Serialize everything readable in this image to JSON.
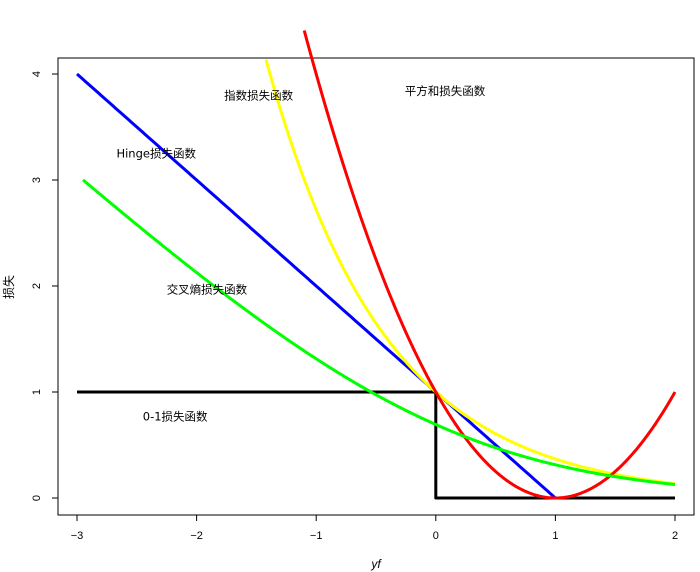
{
  "chart_data": {
    "type": "line",
    "xlabel": "yf",
    "ylabel": "损失",
    "xlim": [
      -3,
      2
    ],
    "ylim": [
      0,
      4
    ],
    "x_ticks": [
      -3,
      -2,
      -1,
      0,
      1,
      2
    ],
    "y_ticks": [
      0,
      1,
      2,
      3,
      4
    ],
    "grid": false,
    "series": [
      {
        "name": "0-1损失函数",
        "color": "#000000",
        "kind": "step",
        "points": [
          [
            -3,
            1
          ],
          [
            0,
            1
          ],
          [
            0,
            0
          ],
          [
            2,
            0
          ]
        ]
      },
      {
        "name": "Hinge损失函数",
        "color": "#0000ff",
        "kind": "hinge",
        "x_range": [
          -3,
          1
        ],
        "points": [
          [
            -3,
            4
          ],
          [
            1,
            0
          ]
        ]
      },
      {
        "name": "指数损失函数",
        "color": "#ffff00",
        "kind": "exp",
        "x_range": [
          -1.42,
          2
        ],
        "points": [
          [
            -1.42,
            4.14
          ],
          [
            0,
            1
          ],
          [
            1,
            0.37
          ],
          [
            2,
            0.14
          ]
        ]
      },
      {
        "name": "平方和损失函数",
        "color": "#ff0000",
        "kind": "square",
        "x_range": [
          -1.1,
          2
        ],
        "points": [
          [
            -1.1,
            4.41
          ],
          [
            0,
            1
          ],
          [
            1,
            0
          ],
          [
            2,
            1
          ]
        ]
      },
      {
        "name": "交叉熵损失函数",
        "color": "#00ff00",
        "kind": "logistic",
        "x_range": [
          -2.95,
          2
        ],
        "points": [
          [
            -2.95,
            3.0
          ],
          [
            0,
            0.69
          ],
          [
            1,
            0.31
          ],
          [
            2,
            0.13
          ]
        ]
      }
    ],
    "annotations": [
      {
        "text": "指数损失函数",
        "x": -1.77,
        "y": 3.76
      },
      {
        "text": "平方和损失函数",
        "x": -0.26,
        "y": 3.8
      },
      {
        "text": "Hinge损失函数",
        "x": -2.67,
        "y": 3.21
      },
      {
        "text": "交叉熵损失函数",
        "x": -2.25,
        "y": 1.93
      },
      {
        "text": "0-1损失函数",
        "x": -2.45,
        "y": 0.73
      }
    ]
  }
}
